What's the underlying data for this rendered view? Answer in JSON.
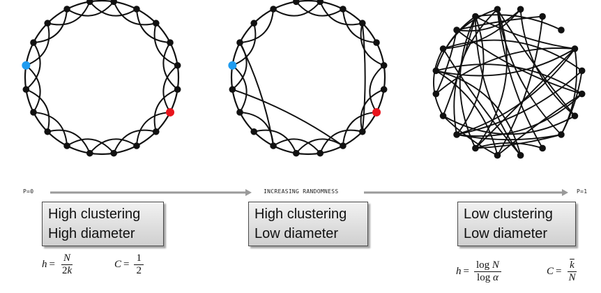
{
  "scale": {
    "left_label": "P=0",
    "center_label": "INCREASING RANDOMNESS",
    "right_label": "P=1"
  },
  "panels": [
    {
      "line1": "High clustering",
      "line2": "High diameter"
    },
    {
      "line1": "High clustering",
      "line2": "Low diameter"
    },
    {
      "line1": "Low clustering",
      "line2": "Low diameter"
    }
  ],
  "formulas": {
    "left_h": {
      "var": "h",
      "num_var": "N",
      "den_coef": "2",
      "den_var": "k"
    },
    "left_c": {
      "var": "C",
      "num": "1",
      "den": "2"
    },
    "right_h": {
      "var": "h",
      "num_fn": "log",
      "num_var": "N",
      "den_fn": "log",
      "den_var": "α"
    },
    "right_c": {
      "var": "C",
      "num_var": "k",
      "den_var": "N"
    }
  },
  "colors": {
    "highlight_start": "#1f9cf0",
    "highlight_end": "#e8141c",
    "network": "#111111",
    "arrow": "#9a9a9a"
  }
}
